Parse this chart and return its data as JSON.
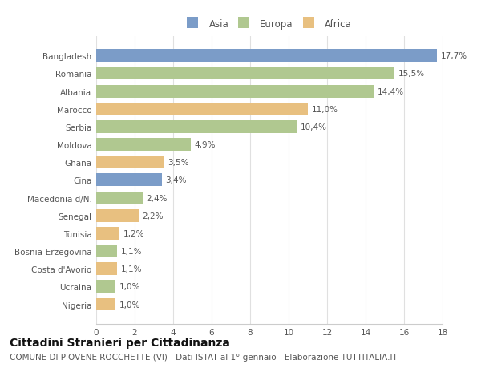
{
  "categories": [
    "Nigeria",
    "Ucraina",
    "Costa d'Avorio",
    "Bosnia-Erzegovina",
    "Tunisia",
    "Senegal",
    "Macedonia d/N.",
    "Cina",
    "Ghana",
    "Moldova",
    "Serbia",
    "Marocco",
    "Albania",
    "Romania",
    "Bangladesh"
  ],
  "values": [
    1.0,
    1.0,
    1.1,
    1.1,
    1.2,
    2.2,
    2.4,
    3.4,
    3.5,
    4.9,
    10.4,
    11.0,
    14.4,
    15.5,
    17.7
  ],
  "labels": [
    "1,0%",
    "1,0%",
    "1,1%",
    "1,1%",
    "1,2%",
    "2,2%",
    "2,4%",
    "3,4%",
    "3,5%",
    "4,9%",
    "10,4%",
    "11,0%",
    "14,4%",
    "15,5%",
    "17,7%"
  ],
  "continents": [
    "Africa",
    "Europa",
    "Africa",
    "Europa",
    "Africa",
    "Africa",
    "Europa",
    "Asia",
    "Africa",
    "Europa",
    "Europa",
    "Africa",
    "Europa",
    "Europa",
    "Asia"
  ],
  "colors": {
    "Asia": "#7b9cc8",
    "Europa": "#b0c890",
    "Africa": "#e8c080"
  },
  "legend_labels": [
    "Asia",
    "Europa",
    "Africa"
  ],
  "title": "Cittadini Stranieri per Cittadinanza",
  "subtitle": "COMUNE DI PIOVENE ROCCHETTE (VI) - Dati ISTAT al 1° gennaio - Elaborazione TUTTITALIA.IT",
  "xlim": [
    0,
    18
  ],
  "xticks": [
    0,
    2,
    4,
    6,
    8,
    10,
    12,
    14,
    16,
    18
  ],
  "background_color": "#ffffff",
  "plot_bg_color": "#ffffff",
  "grid_color": "#e0e0e0",
  "title_fontsize": 10,
  "subtitle_fontsize": 7.5,
  "label_fontsize": 7.5,
  "tick_fontsize": 7.5,
  "ylabel_fontsize": 7.5
}
